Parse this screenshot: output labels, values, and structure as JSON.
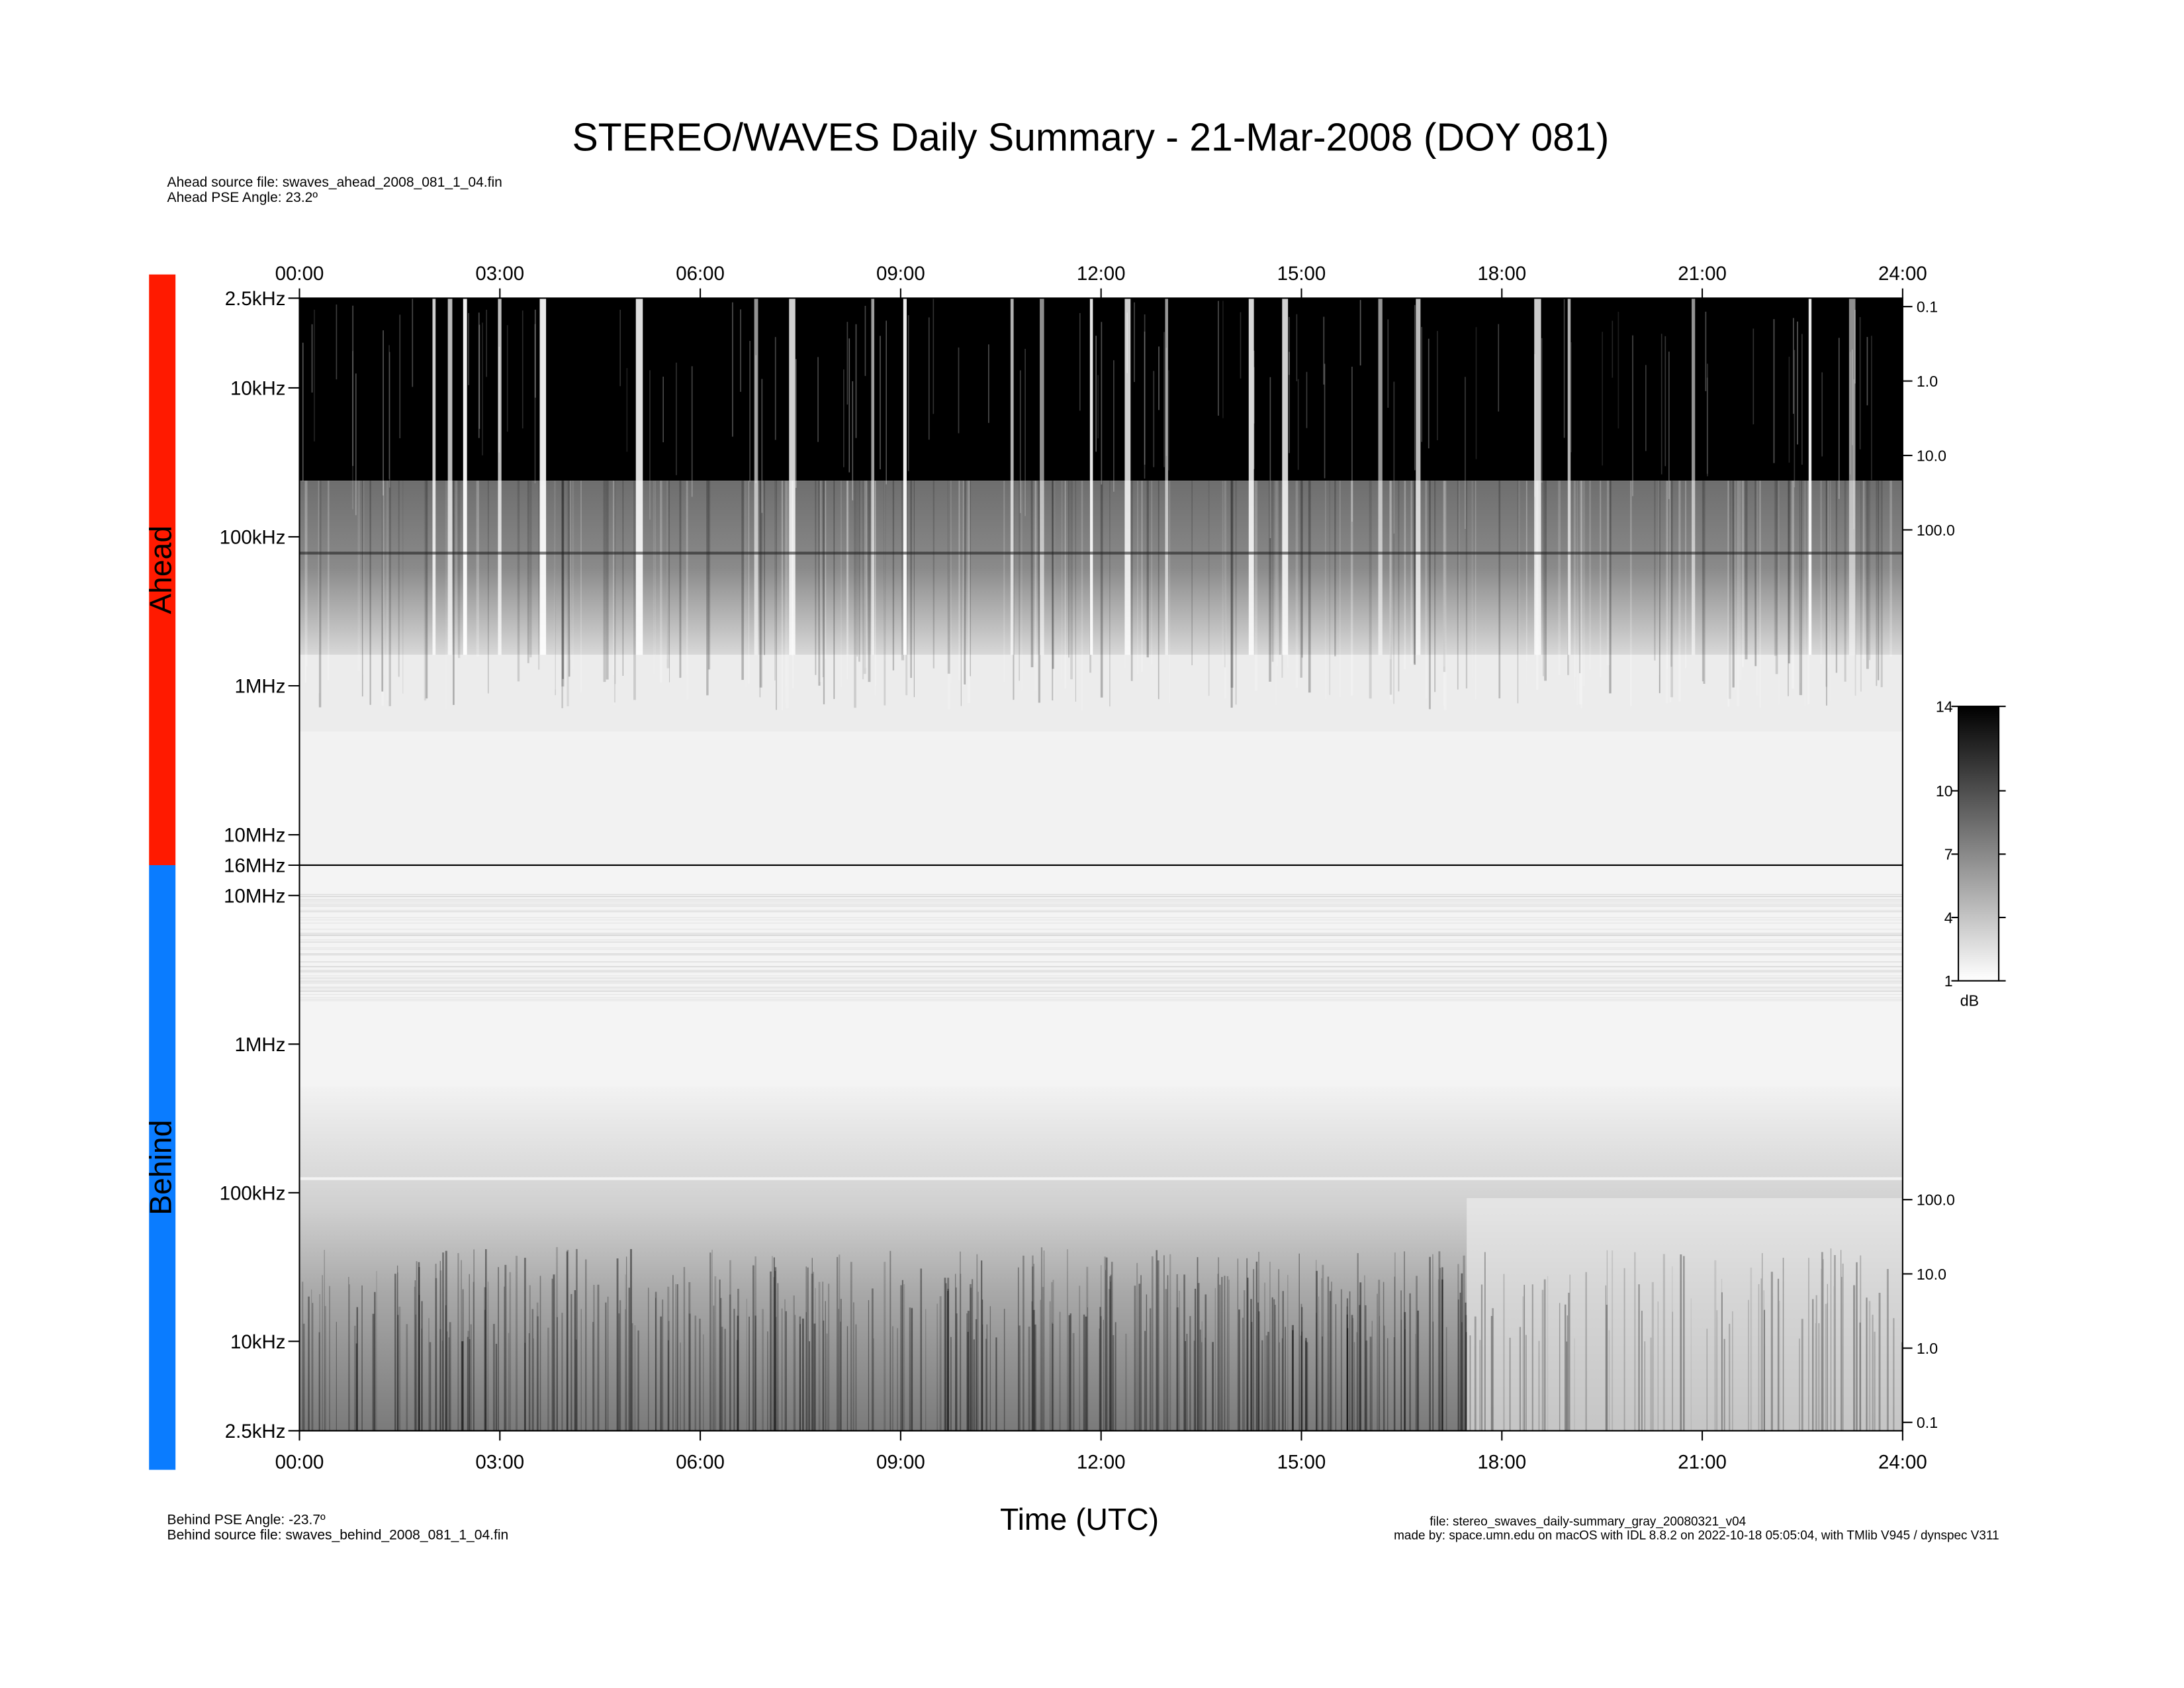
{
  "header": {
    "title": "STEREO/WAVES Daily Summary - 21-Mar-2008 (DOY 081)",
    "ahead_source": "Ahead source file: swaves_ahead_2008_081_1_04.fin",
    "ahead_pse": "Ahead PSE Angle:   23.2º"
  },
  "footer": {
    "behind_pse": "Behind PSE Angle:  -23.7º",
    "behind_source": "Behind source file: swaves_behind_2008_081_1_04.fin",
    "file": "file: stereo_swaves_daily-summary_gray_20080321_v04",
    "made_by": "made by: space.umn.edu on macOS with IDL 8.8.2 on 2022-10-18 05:05:04, with TMlib V945 / dynspec V311"
  },
  "colorbar": {
    "ylim": [
      1,
      14
    ],
    "yticks": [
      1,
      4,
      7,
      10,
      14
    ],
    "label": "dB"
  },
  "chart_data": [
    {
      "type": "spectrogram",
      "label": "Ahead",
      "color": "#ff1a00",
      "xlim": [
        0,
        24
      ],
      "xticks": [
        {
          "value": 0,
          "label": "00:00"
        },
        {
          "value": 3,
          "label": "03:00"
        },
        {
          "value": 6,
          "label": "06:00"
        },
        {
          "value": 9,
          "label": "09:00"
        },
        {
          "value": 12,
          "label": "12:00"
        },
        {
          "value": 15,
          "label": "15:00"
        },
        {
          "value": 18,
          "label": "18:00"
        },
        {
          "value": 21,
          "label": "21:00"
        },
        {
          "value": 24,
          "label": "24:00"
        }
      ],
      "ylog": true,
      "ylim": [
        16000000,
        2500
      ],
      "yticks": [
        {
          "value": 2500,
          "label": "2.5kHz"
        },
        {
          "value": 10000,
          "label": "10kHz"
        },
        {
          "value": 100000,
          "label": "100kHz"
        },
        {
          "value": 1000000,
          "label": "1MHz"
        },
        {
          "value": 10000000,
          "label": "10MHz"
        },
        {
          "value": 16000000,
          "label": "16MHz"
        }
      ],
      "y2log": true,
      "y2lim": [
        3200000,
        0.077
      ],
      "y2ticks": [
        0.1,
        {
          "value": 1,
          "label": "1.0"
        },
        {
          "value": 10,
          "label": "10.0"
        },
        {
          "value": 100,
          "label": "100.0"
        }
      ]
    },
    {
      "type": "spectrogram",
      "label": "Behind",
      "color": "#0a7cff",
      "xlim": [
        0,
        24
      ],
      "xticks": [
        {
          "value": 0,
          "label": "00:00"
        },
        {
          "value": 3,
          "label": "03:00"
        },
        {
          "value": 6,
          "label": "06:00"
        },
        {
          "value": 9,
          "label": "09:00"
        },
        {
          "value": 12,
          "label": "12:00"
        },
        {
          "value": 15,
          "label": "15:00"
        },
        {
          "value": 18,
          "label": "18:00"
        },
        {
          "value": 21,
          "label": "21:00"
        },
        {
          "value": 24,
          "label": "24:00"
        }
      ],
      "xlabel": "Time (UTC)",
      "ylog": true,
      "ylim": [
        2500,
        16000000
      ],
      "yticks": [
        {
          "value": 10000000,
          "label": "10MHz"
        },
        {
          "value": 1000000,
          "label": "1MHz"
        },
        {
          "value": 100000,
          "label": "100kHz"
        },
        {
          "value": 10000,
          "label": "10kHz"
        },
        {
          "value": 2500,
          "label": "2.5kHz"
        }
      ],
      "y2log": true,
      "y2lim": [
        0.077,
        3200000
      ],
      "y2ticks": [
        {
          "value": 100,
          "label": "100.0"
        },
        {
          "value": 10,
          "label": "10.0"
        },
        {
          "value": 1,
          "label": "1.0"
        },
        0.1
      ]
    }
  ]
}
